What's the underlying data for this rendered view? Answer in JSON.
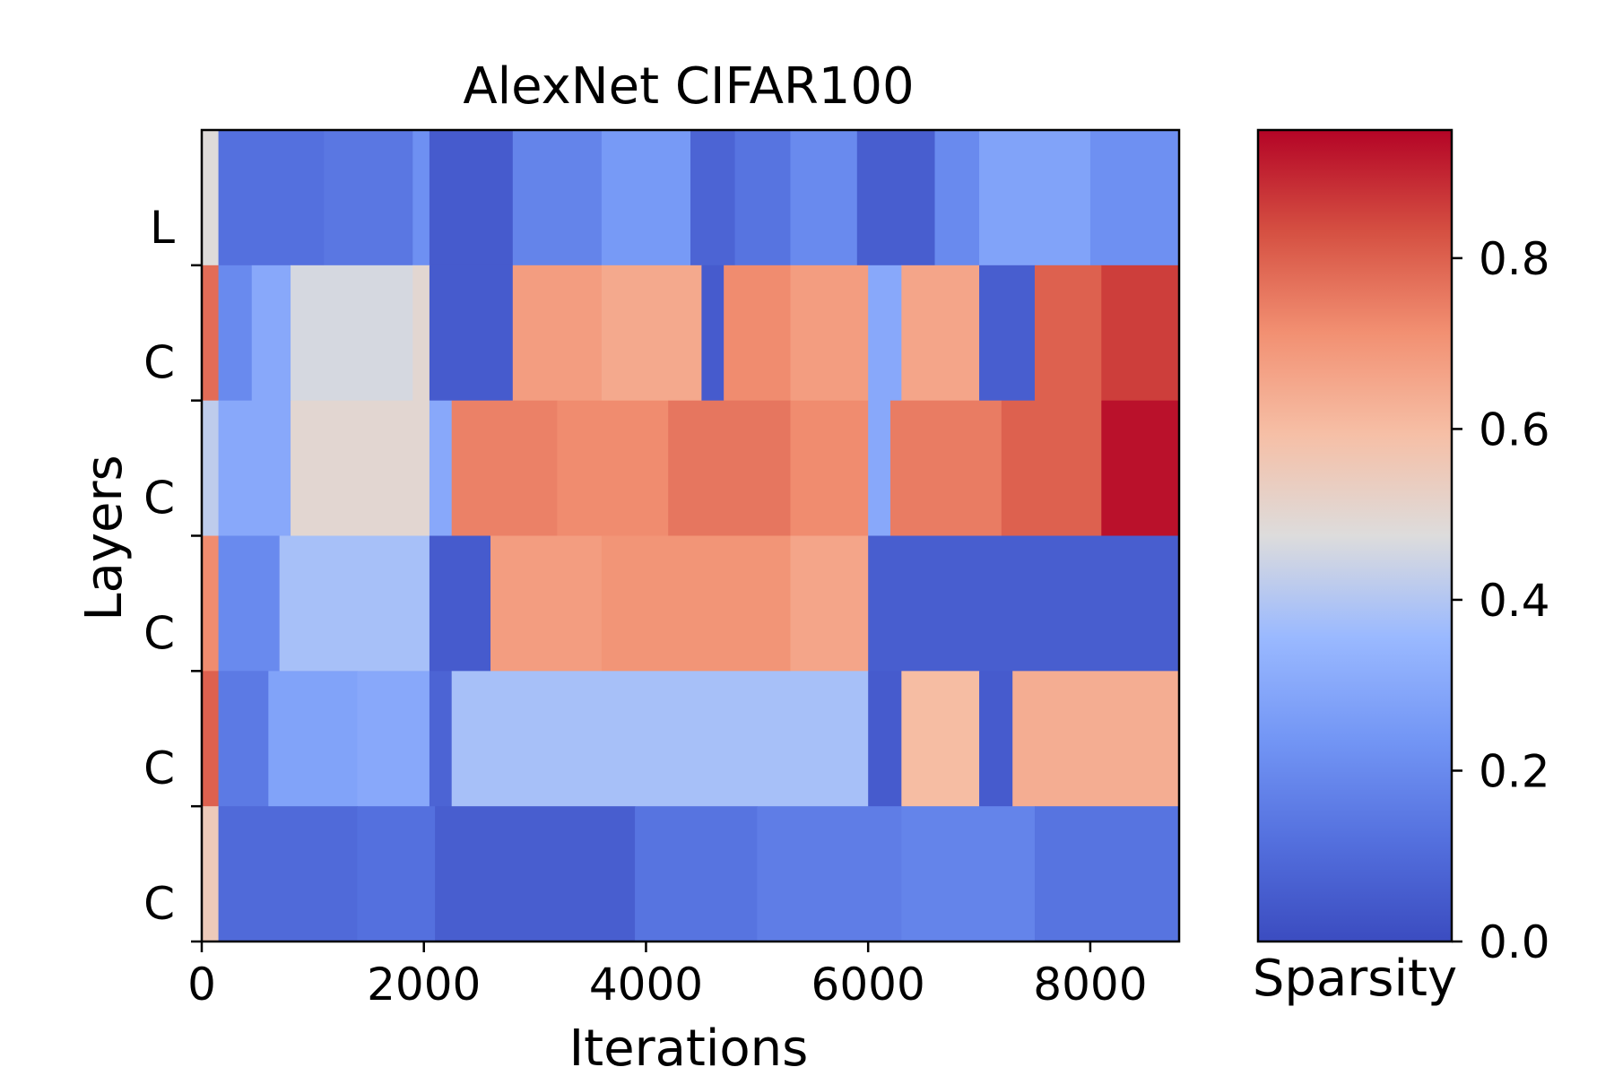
{
  "chart_data": {
    "type": "heatmap",
    "title": "AlexNet CIFAR100",
    "xlabel": "Iterations",
    "ylabel": "Layers",
    "xlim": [
      0,
      8800
    ],
    "xticks": [
      0,
      2000,
      4000,
      6000,
      8000
    ],
    "xtick_labels": [
      "0",
      "2000",
      "4000",
      "6000",
      "8000"
    ],
    "rows": [
      "L",
      "C",
      "C",
      "C",
      "C",
      "C"
    ],
    "colorbar": {
      "label": "Sparsity",
      "range": [
        0.0,
        0.95
      ],
      "ticks": [
        0.0,
        0.2,
        0.4,
        0.6,
        0.8
      ],
      "tick_labels": [
        "0.0",
        "0.2",
        "0.4",
        "0.6",
        "0.8"
      ],
      "colormap": "coolwarm"
    },
    "segments": [
      [
        [
          0,
          150,
          0.48
        ],
        [
          150,
          1100,
          0.12
        ],
        [
          1100,
          1900,
          0.14
        ],
        [
          1900,
          2050,
          0.22
        ],
        [
          2050,
          2800,
          0.05
        ],
        [
          2800,
          3600,
          0.18
        ],
        [
          3600,
          4400,
          0.25
        ],
        [
          4400,
          4800,
          0.08
        ],
        [
          4800,
          5300,
          0.13
        ],
        [
          5300,
          5900,
          0.2
        ],
        [
          5900,
          6600,
          0.06
        ],
        [
          6600,
          7000,
          0.2
        ],
        [
          7000,
          8000,
          0.28
        ],
        [
          8000,
          8800,
          0.22
        ]
      ],
      [
        [
          0,
          150,
          0.78
        ],
        [
          150,
          450,
          0.2
        ],
        [
          450,
          800,
          0.3
        ],
        [
          800,
          1900,
          0.46
        ],
        [
          1900,
          2050,
          0.5
        ],
        [
          2050,
          2800,
          0.05
        ],
        [
          2800,
          3600,
          0.68
        ],
        [
          3600,
          4500,
          0.65
        ],
        [
          4500,
          4700,
          0.05
        ],
        [
          4700,
          5300,
          0.72
        ],
        [
          5300,
          6000,
          0.68
        ],
        [
          6000,
          6300,
          0.3
        ],
        [
          6300,
          7000,
          0.66
        ],
        [
          7000,
          7500,
          0.06
        ],
        [
          7500,
          8100,
          0.8
        ],
        [
          8100,
          8800,
          0.86
        ]
      ],
      [
        [
          0,
          150,
          0.42
        ],
        [
          150,
          800,
          0.3
        ],
        [
          800,
          2050,
          0.5
        ],
        [
          2050,
          2250,
          0.3
        ],
        [
          2250,
          3200,
          0.74
        ],
        [
          3200,
          4200,
          0.72
        ],
        [
          4200,
          5300,
          0.76
        ],
        [
          5300,
          6000,
          0.72
        ],
        [
          6000,
          6200,
          0.3
        ],
        [
          6200,
          7200,
          0.75
        ],
        [
          7200,
          8100,
          0.8
        ],
        [
          8100,
          8800,
          0.93
        ]
      ],
      [
        [
          0,
          150,
          0.72
        ],
        [
          150,
          700,
          0.2
        ],
        [
          700,
          2050,
          0.38
        ],
        [
          2050,
          2600,
          0.05
        ],
        [
          2600,
          3600,
          0.68
        ],
        [
          3600,
          5300,
          0.7
        ],
        [
          5300,
          6000,
          0.66
        ],
        [
          6000,
          8800,
          0.06
        ]
      ],
      [
        [
          0,
          150,
          0.8
        ],
        [
          150,
          600,
          0.15
        ],
        [
          600,
          1400,
          0.28
        ],
        [
          1400,
          2050,
          0.3
        ],
        [
          2050,
          2250,
          0.08
        ],
        [
          2250,
          6000,
          0.38
        ],
        [
          6000,
          6300,
          0.05
        ],
        [
          6300,
          7000,
          0.6
        ],
        [
          7000,
          7300,
          0.05
        ],
        [
          7300,
          8800,
          0.64
        ]
      ],
      [
        [
          0,
          150,
          0.55
        ],
        [
          150,
          1400,
          0.1
        ],
        [
          1400,
          2100,
          0.12
        ],
        [
          2100,
          3900,
          0.06
        ],
        [
          3900,
          5000,
          0.13
        ],
        [
          5000,
          6300,
          0.16
        ],
        [
          6300,
          7500,
          0.18
        ],
        [
          7500,
          8800,
          0.13
        ]
      ]
    ]
  }
}
